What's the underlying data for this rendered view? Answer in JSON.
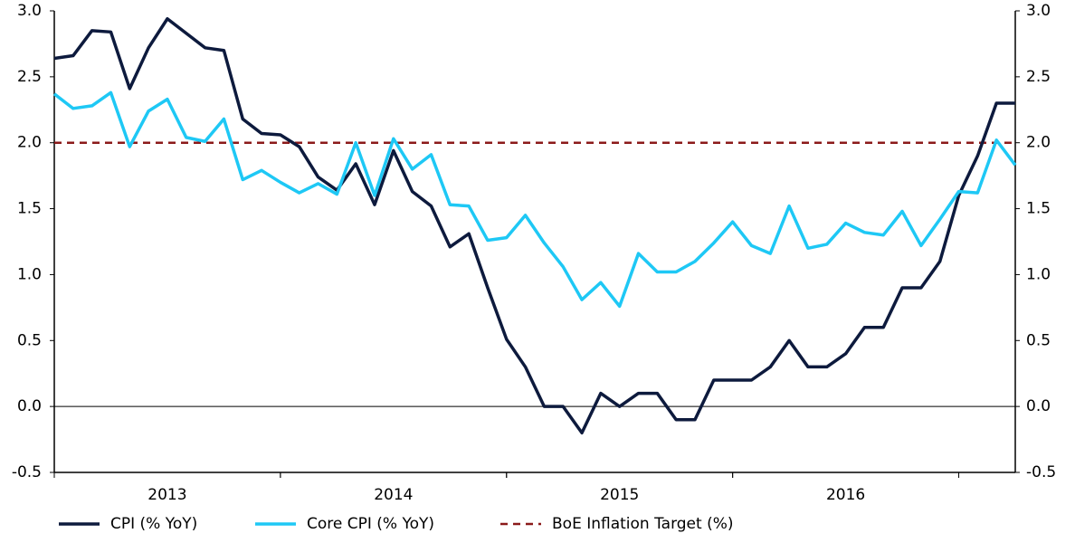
{
  "chart_data": {
    "type": "line",
    "categories": [
      null,
      null,
      null,
      null,
      null,
      null,
      "2013",
      null,
      null,
      null,
      null,
      null,
      null,
      null,
      null,
      null,
      null,
      null,
      "2014",
      null,
      null,
      null,
      null,
      null,
      null,
      null,
      null,
      null,
      null,
      null,
      "2015",
      null,
      null,
      null,
      null,
      null,
      null,
      null,
      null,
      null,
      null,
      null,
      "2016",
      null,
      null,
      null,
      null,
      null,
      null,
      null,
      null,
      null
    ],
    "series": [
      {
        "name": "CPI (% YoY)",
        "color": "#0d1a3d",
        "values": [
          2.64,
          2.66,
          2.85,
          2.84,
          2.41,
          2.72,
          2.94,
          2.83,
          2.72,
          2.7,
          2.18,
          2.07,
          2.06,
          1.97,
          1.74,
          1.64,
          1.84,
          1.53,
          1.94,
          1.63,
          1.52,
          1.21,
          1.31,
          0.9,
          0.51,
          0.3,
          0,
          0,
          -0.2,
          0.1,
          0,
          0.1,
          0.1,
          -0.1,
          -0.1,
          0.2,
          0.2,
          0.2,
          0.3,
          0.5,
          0.3,
          0.3,
          0.4,
          0.6,
          0.6,
          0.9,
          0.9,
          1.1,
          1.6,
          1.9,
          2.3,
          2.3
        ]
      },
      {
        "name": "Core CPI (% YoY)",
        "color": "#1ec8f5",
        "values": [
          2.37,
          2.26,
          2.28,
          2.38,
          1.97,
          2.24,
          2.33,
          2.04,
          2.01,
          2.18,
          1.72,
          1.79,
          1.7,
          1.62,
          1.69,
          1.61,
          2.0,
          1.6,
          2.03,
          1.8,
          1.91,
          1.53,
          1.52,
          1.26,
          1.28,
          1.45,
          1.24,
          1.06,
          0.81,
          0.94,
          0.76,
          1.16,
          1.02,
          1.02,
          1.1,
          1.24,
          1.4,
          1.22,
          1.16,
          1.52,
          1.2,
          1.23,
          1.39,
          1.32,
          1.3,
          1.48,
          1.22,
          1.42,
          1.63,
          1.62,
          2.02,
          1.83
        ]
      }
    ],
    "reference_lines": [
      {
        "name": "BoE Inflation Target (%)",
        "value": 2.0,
        "color": "#8b1a1a",
        "dash": true
      }
    ],
    "ylim": [
      -0.5,
      3.0
    ],
    "yticks": [
      {
        "value": -0.5,
        "label": "-0.5"
      },
      {
        "value": 0,
        "label": "0.0"
      },
      {
        "value": 0.5,
        "label": "0.5"
      },
      {
        "value": 1,
        "label": "1.0"
      },
      {
        "value": 1.5,
        "label": "1.5"
      },
      {
        "value": 2,
        "label": "2.0"
      },
      {
        "value": 2.5,
        "label": "2.5"
      },
      {
        "value": 3,
        "label": "3.0"
      }
    ],
    "grid": false,
    "legend": "bottom"
  }
}
